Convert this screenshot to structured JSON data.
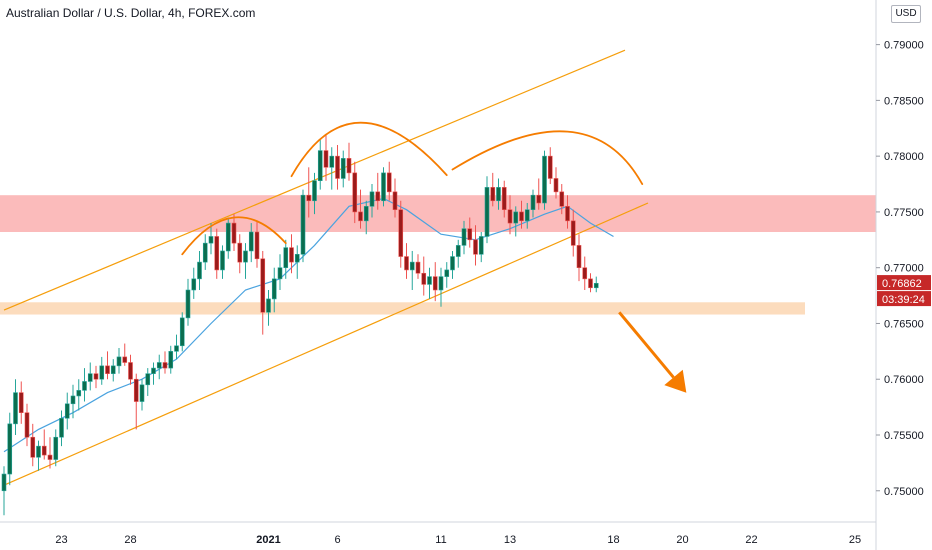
{
  "header": {
    "title": "Australian Dollar / U.S. Dollar, 4h, FOREX.com",
    "currency_button": "USD"
  },
  "colors": {
    "up": "#26a69a",
    "down": "#ef5350",
    "up_body": "#0b6e4f",
    "down_body": "#9b1b1b",
    "ma": "#4aa3df",
    "channel": "#f59e0b",
    "resistance_zone": "#fbb4b4",
    "support_zone": "#fcd8b6",
    "arrow": "#f57c00",
    "price_tag": "#c62828"
  },
  "chart_data": {
    "type": "candlestick",
    "title": "Australian Dollar / U.S. Dollar, 4h, FOREX.com",
    "ylim": [
      0.7472,
      0.794
    ],
    "y_ticks": [
      "0.75000",
      "0.75500",
      "0.76000",
      "0.76500",
      "0.77000",
      "0.77500",
      "0.78000",
      "0.78500",
      "0.79000"
    ],
    "x_ticks": [
      {
        "label": "23",
        "index": 10
      },
      {
        "label": "28",
        "index": 22
      },
      {
        "label": "2021",
        "index": 46
      },
      {
        "label": "6",
        "index": 58
      },
      {
        "label": "11",
        "index": 76
      },
      {
        "label": "13",
        "index": 88
      },
      {
        "label": "18",
        "index": 106
      },
      {
        "label": "20",
        "index": 118
      },
      {
        "label": "22",
        "index": 130
      },
      {
        "label": "25",
        "index": 148
      }
    ],
    "last_price": "0.76862",
    "countdown": "03:39:24",
    "candles": [
      [
        0.75,
        0.7522,
        0.7478,
        0.7515
      ],
      [
        0.7515,
        0.757,
        0.7505,
        0.756
      ],
      [
        0.756,
        0.76,
        0.755,
        0.7588
      ],
      [
        0.7588,
        0.7598,
        0.756,
        0.757
      ],
      [
        0.757,
        0.7578,
        0.754,
        0.7548
      ],
      [
        0.7548,
        0.756,
        0.7522,
        0.753
      ],
      [
        0.753,
        0.7545,
        0.7518,
        0.754
      ],
      [
        0.754,
        0.7555,
        0.7528,
        0.7532
      ],
      [
        0.7532,
        0.7548,
        0.752,
        0.7528
      ],
      [
        0.7528,
        0.7555,
        0.7522,
        0.7548
      ],
      [
        0.7548,
        0.7572,
        0.754,
        0.7565
      ],
      [
        0.7565,
        0.7588,
        0.7555,
        0.7578
      ],
      [
        0.7578,
        0.7595,
        0.7565,
        0.7585
      ],
      [
        0.7585,
        0.76,
        0.7572,
        0.759
      ],
      [
        0.759,
        0.761,
        0.758,
        0.7598
      ],
      [
        0.7598,
        0.7615,
        0.759,
        0.7605
      ],
      [
        0.7605,
        0.7612,
        0.7592,
        0.76
      ],
      [
        0.76,
        0.762,
        0.7595,
        0.7612
      ],
      [
        0.7612,
        0.7625,
        0.76,
        0.7605
      ],
      [
        0.7605,
        0.7618,
        0.7598,
        0.7612
      ],
      [
        0.7612,
        0.7628,
        0.7605,
        0.762
      ],
      [
        0.762,
        0.7632,
        0.7612,
        0.7615
      ],
      [
        0.7615,
        0.7622,
        0.7595,
        0.76
      ],
      [
        0.76,
        0.7605,
        0.7555,
        0.758
      ],
      [
        0.758,
        0.76,
        0.7572,
        0.7595
      ],
      [
        0.7595,
        0.761,
        0.7585,
        0.7605
      ],
      [
        0.7605,
        0.7615,
        0.7595,
        0.761
      ],
      [
        0.761,
        0.7622,
        0.76,
        0.7615
      ],
      [
        0.7615,
        0.7625,
        0.7605,
        0.761
      ],
      [
        0.761,
        0.763,
        0.7605,
        0.7625
      ],
      [
        0.7625,
        0.764,
        0.7618,
        0.763
      ],
      [
        0.763,
        0.766,
        0.7625,
        0.7655
      ],
      [
        0.7655,
        0.769,
        0.7648,
        0.768
      ],
      [
        0.768,
        0.77,
        0.7672,
        0.769
      ],
      [
        0.769,
        0.7715,
        0.768,
        0.7705
      ],
      [
        0.7705,
        0.773,
        0.7698,
        0.7722
      ],
      [
        0.7722,
        0.774,
        0.7712,
        0.7728
      ],
      [
        0.7728,
        0.7735,
        0.769,
        0.7698
      ],
      [
        0.7698,
        0.772,
        0.769,
        0.7715
      ],
      [
        0.7715,
        0.7745,
        0.7708,
        0.774
      ],
      [
        0.774,
        0.7748,
        0.7715,
        0.7722
      ],
      [
        0.7722,
        0.773,
        0.7695,
        0.7705
      ],
      [
        0.7705,
        0.7722,
        0.769,
        0.7715
      ],
      [
        0.7715,
        0.774,
        0.7705,
        0.7732
      ],
      [
        0.7732,
        0.7742,
        0.77,
        0.7708
      ],
      [
        0.7708,
        0.7715,
        0.764,
        0.766
      ],
      [
        0.766,
        0.768,
        0.7648,
        0.7672
      ],
      [
        0.7672,
        0.77,
        0.766,
        0.769
      ],
      [
        0.769,
        0.7712,
        0.768,
        0.77
      ],
      [
        0.77,
        0.7725,
        0.769,
        0.7718
      ],
      [
        0.7718,
        0.773,
        0.7695,
        0.7705
      ],
      [
        0.7705,
        0.772,
        0.769,
        0.7712
      ],
      [
        0.7712,
        0.777,
        0.7705,
        0.7765
      ],
      [
        0.7765,
        0.779,
        0.7745,
        0.776
      ],
      [
        0.776,
        0.7785,
        0.7748,
        0.7778
      ],
      [
        0.7778,
        0.7815,
        0.777,
        0.7805
      ],
      [
        0.7805,
        0.782,
        0.7778,
        0.779
      ],
      [
        0.779,
        0.7808,
        0.777,
        0.78
      ],
      [
        0.78,
        0.781,
        0.777,
        0.778
      ],
      [
        0.778,
        0.7805,
        0.7772,
        0.7798
      ],
      [
        0.7798,
        0.7812,
        0.7778,
        0.7785
      ],
      [
        0.7785,
        0.7795,
        0.774,
        0.775
      ],
      [
        0.775,
        0.777,
        0.7735,
        0.7742
      ],
      [
        0.7742,
        0.776,
        0.773,
        0.7755
      ],
      [
        0.7755,
        0.7775,
        0.7745,
        0.7768
      ],
      [
        0.7768,
        0.7785,
        0.7752,
        0.776
      ],
      [
        0.776,
        0.779,
        0.7755,
        0.7785
      ],
      [
        0.7785,
        0.7795,
        0.776,
        0.7768
      ],
      [
        0.7768,
        0.778,
        0.7745,
        0.7752
      ],
      [
        0.7752,
        0.776,
        0.77,
        0.771
      ],
      [
        0.771,
        0.7722,
        0.769,
        0.7698
      ],
      [
        0.7698,
        0.7715,
        0.768,
        0.7705
      ],
      [
        0.7705,
        0.7712,
        0.769,
        0.7695
      ],
      [
        0.7695,
        0.771,
        0.7675,
        0.7685
      ],
      [
        0.7685,
        0.77,
        0.7672,
        0.7692
      ],
      [
        0.7692,
        0.7705,
        0.767,
        0.768
      ],
      [
        0.768,
        0.77,
        0.7665,
        0.7692
      ],
      [
        0.7692,
        0.7705,
        0.7682,
        0.7698
      ],
      [
        0.7698,
        0.7715,
        0.769,
        0.771
      ],
      [
        0.771,
        0.7725,
        0.77,
        0.772
      ],
      [
        0.772,
        0.7742,
        0.7712,
        0.7735
      ],
      [
        0.7735,
        0.7745,
        0.7718,
        0.7725
      ],
      [
        0.7725,
        0.7738,
        0.7702,
        0.7712
      ],
      [
        0.7712,
        0.7732,
        0.7705,
        0.7728
      ],
      [
        0.7728,
        0.7782,
        0.7722,
        0.7772
      ],
      [
        0.7772,
        0.7785,
        0.7755,
        0.776
      ],
      [
        0.776,
        0.778,
        0.7752,
        0.7772
      ],
      [
        0.7772,
        0.7778,
        0.7745,
        0.7752
      ],
      [
        0.7752,
        0.7765,
        0.773,
        0.774
      ],
      [
        0.774,
        0.7755,
        0.7728,
        0.775
      ],
      [
        0.775,
        0.776,
        0.7735,
        0.7742
      ],
      [
        0.7742,
        0.7758,
        0.7735,
        0.7752
      ],
      [
        0.7752,
        0.777,
        0.7745,
        0.7765
      ],
      [
        0.7765,
        0.778,
        0.7752,
        0.7758
      ],
      [
        0.7758,
        0.7805,
        0.7752,
        0.78
      ],
      [
        0.78,
        0.7808,
        0.7775,
        0.778
      ],
      [
        0.778,
        0.779,
        0.7762,
        0.7768
      ],
      [
        0.7768,
        0.7775,
        0.7748,
        0.7755
      ],
      [
        0.7755,
        0.7765,
        0.7735,
        0.7742
      ],
      [
        0.7742,
        0.7752,
        0.771,
        0.772
      ],
      [
        0.772,
        0.773,
        0.7688,
        0.77
      ],
      [
        0.77,
        0.771,
        0.768,
        0.769
      ],
      [
        0.769,
        0.7695,
        0.7678,
        0.7682
      ],
      [
        0.7682,
        0.7692,
        0.7678,
        0.7686
      ]
    ],
    "moving_average": [
      [
        0,
        0.7535
      ],
      [
        6,
        0.7555
      ],
      [
        12,
        0.757
      ],
      [
        18,
        0.7588
      ],
      [
        24,
        0.76
      ],
      [
        30,
        0.7618
      ],
      [
        36,
        0.765
      ],
      [
        42,
        0.768
      ],
      [
        48,
        0.769
      ],
      [
        54,
        0.772
      ],
      [
        60,
        0.7755
      ],
      [
        66,
        0.7762
      ],
      [
        70,
        0.7752
      ],
      [
        76,
        0.773
      ],
      [
        82,
        0.7725
      ],
      [
        88,
        0.7735
      ],
      [
        94,
        0.7748
      ],
      [
        98,
        0.7755
      ],
      [
        102,
        0.774
      ],
      [
        106,
        0.7728
      ]
    ],
    "channel_upper": [
      [
        0,
        0.7662
      ],
      [
        108,
        0.7895
      ]
    ],
    "channel_lower": [
      [
        0,
        0.7505
      ],
      [
        112,
        0.7758
      ]
    ],
    "resistance_zone": [
      0.7732,
      0.7765
    ],
    "support_zone": [
      0.7658,
      0.7669
    ],
    "domes": [
      [
        [
          31,
          0.7712
        ],
        [
          40,
          0.7745
        ],
        [
          49,
          0.7722
        ]
      ],
      [
        [
          50,
          0.7782
        ],
        [
          62,
          0.783
        ],
        [
          77,
          0.7783
        ]
      ],
      [
        [
          78,
          0.7788
        ],
        [
          98,
          0.7822
        ],
        [
          111,
          0.7775
        ]
      ]
    ],
    "arrow": [
      [
        107,
        0.766
      ],
      [
        118,
        0.7592
      ]
    ]
  }
}
